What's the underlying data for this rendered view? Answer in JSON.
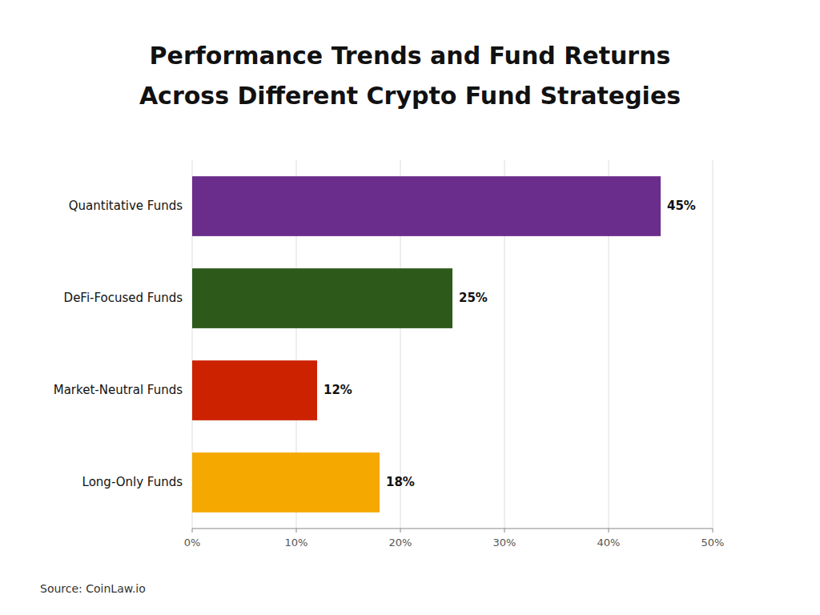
{
  "chart_data": {
    "type": "bar",
    "orientation": "horizontal",
    "title": "Performance Trends and Fund Returns",
    "subtitle": "Across Different Crypto Fund Strategies",
    "source": "Source: CoinLaw.io",
    "categories": [
      "Quantitative Funds",
      "DeFi-Focused Funds",
      "Market-Neutral Funds",
      "Long-Only Funds"
    ],
    "values": [
      45,
      25,
      12,
      18
    ],
    "value_labels": [
      "45%",
      "25%",
      "12%",
      "18%"
    ],
    "data_labels": true,
    "colors": [
      "#6B2D8B",
      "#2D5A1B",
      "#CC2200",
      "#F5A800"
    ],
    "xlim": [
      0,
      50
    ],
    "xticks": [
      {
        "value": 0,
        "label": "0%"
      },
      {
        "value": 10,
        "label": "10%"
      },
      {
        "value": 20,
        "label": "20%"
      },
      {
        "value": 30,
        "label": "30%"
      },
      {
        "value": 40,
        "label": "40%"
      },
      {
        "value": 50,
        "label": "50%"
      }
    ],
    "grid": true
  }
}
